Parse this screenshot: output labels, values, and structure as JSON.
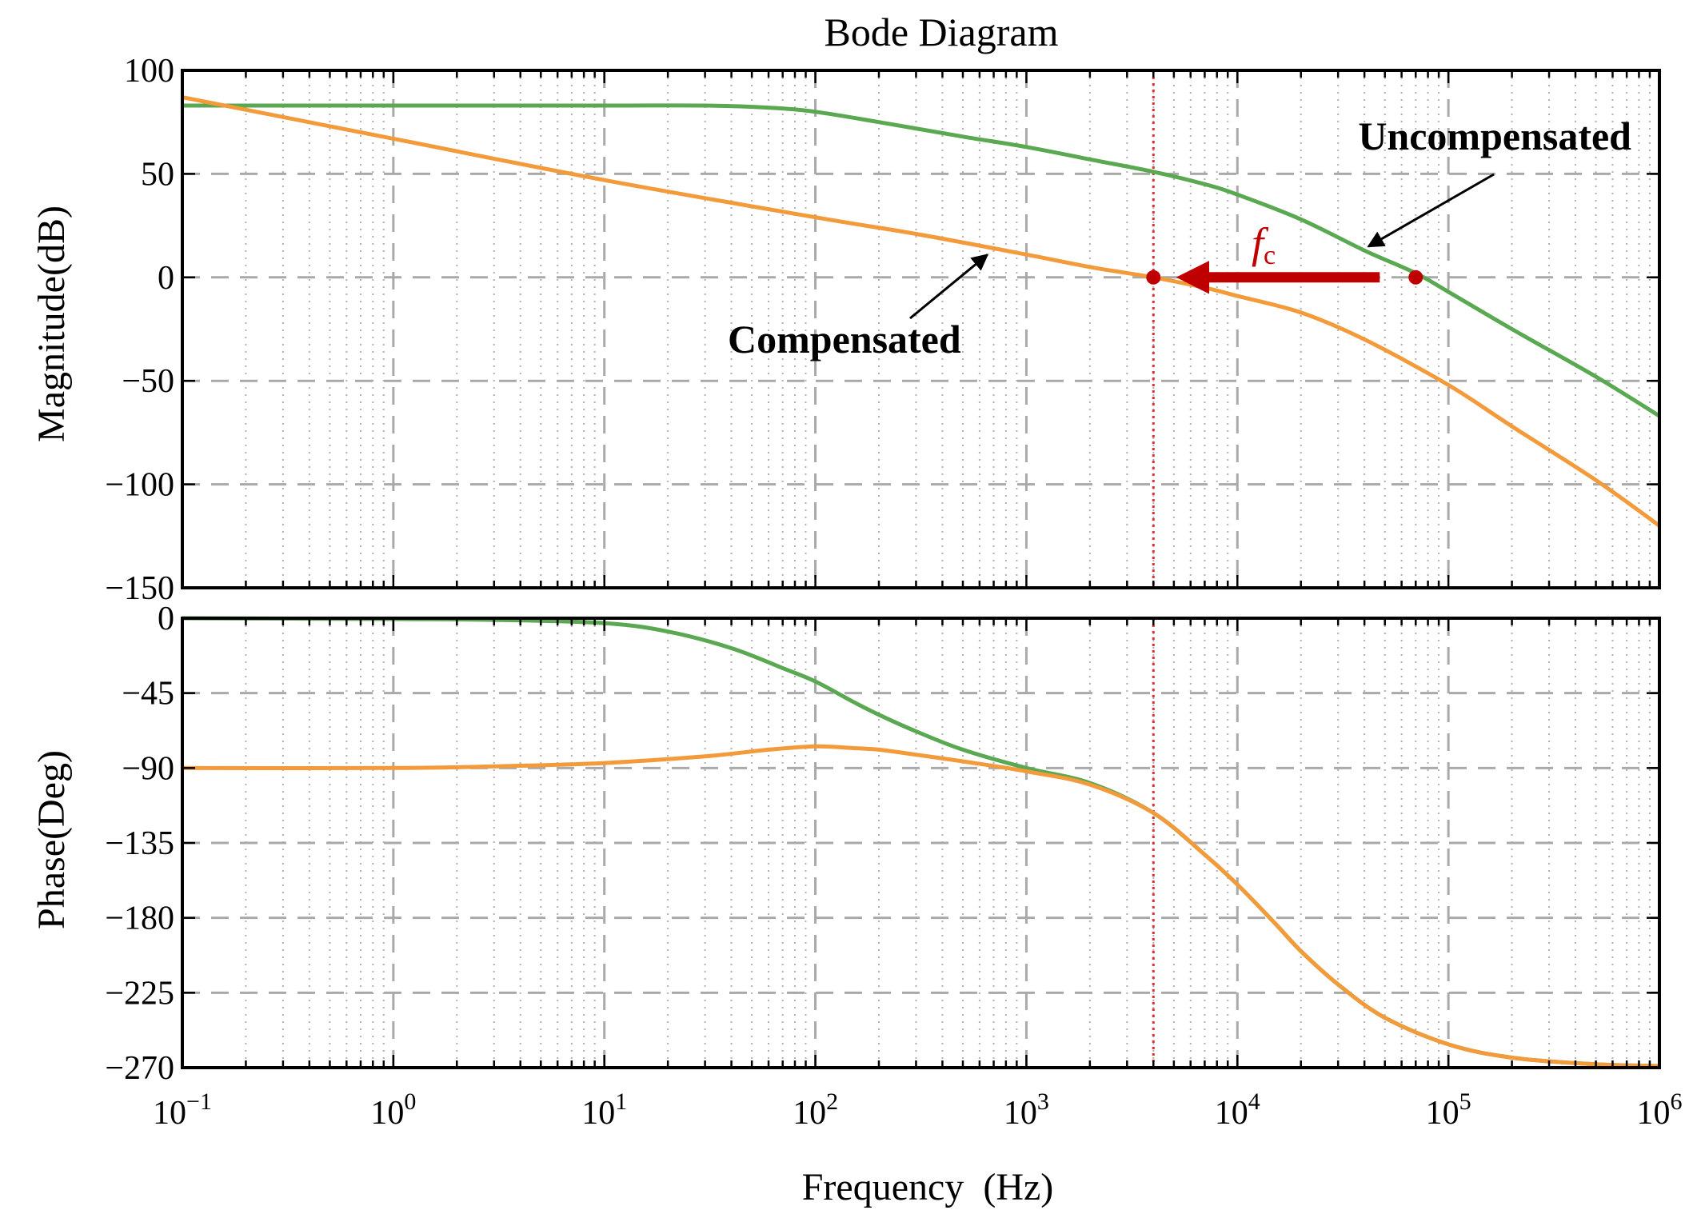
{
  "chart_data": [
    {
      "type": "line",
      "id": "magnitude",
      "title": "Bode Diagram",
      "xlabel": "",
      "ylabel": "Magnitude(dB)",
      "xscale": "log",
      "xlim": [
        0.1,
        1000000
      ],
      "ylim": [
        -150,
        100
      ],
      "yticks": [
        100,
        50,
        0,
        -50,
        -100,
        -150
      ],
      "ytick_labels": [
        "100",
        "50",
        "0",
        "−50",
        "−100",
        "−150"
      ],
      "grid": true,
      "series": [
        {
          "name": "Uncompensated",
          "color": "#5aa851",
          "x": [
            0.1,
            1,
            10,
            30,
            60,
            100,
            200,
            500,
            1000,
            2000,
            4000,
            7000,
            10000,
            20000,
            40000,
            70000,
            100000,
            200000,
            500000,
            1000000
          ],
          "y": [
            83,
            83,
            83,
            83,
            82,
            80,
            75,
            68,
            63,
            57,
            51,
            45,
            40,
            28,
            13,
            2,
            -7,
            -25,
            -48,
            -67
          ]
        },
        {
          "name": "Compensated",
          "color": "#f39a3b",
          "x": [
            0.1,
            1,
            10,
            100,
            300,
            1000,
            2000,
            4000,
            7000,
            10000,
            20000,
            40000,
            100000,
            200000,
            500000,
            1000000
          ],
          "y": [
            87,
            67,
            47,
            29,
            21,
            11,
            5,
            0,
            -5,
            -9,
            -17,
            -30,
            -52,
            -72,
            -98,
            -120
          ]
        }
      ],
      "annotations": [
        {
          "text": "Uncompensated",
          "points_to": [
            40000,
            13
          ]
        },
        {
          "text": "Compensated",
          "points_to": [
            700,
            14
          ]
        },
        {
          "text": "f",
          "subscript": "c",
          "meaning": "crossover frequency shift",
          "from": [
            70000,
            0
          ],
          "to": [
            4000,
            0
          ]
        }
      ],
      "markers": [
        {
          "x": 4000,
          "y": 0,
          "color": "#c00000"
        },
        {
          "x": 70000,
          "y": 0,
          "color": "#c00000"
        }
      ],
      "vline": {
        "x": 4000,
        "color": "#e03030"
      }
    },
    {
      "type": "line",
      "id": "phase",
      "title": "",
      "xlabel": "Frequency  (Hz)",
      "ylabel": "Phase(Deg)",
      "xscale": "log",
      "xlim": [
        0.1,
        1000000
      ],
      "ylim": [
        -270,
        0
      ],
      "yticks": [
        0,
        -45,
        -90,
        -135,
        -180,
        -225,
        -270
      ],
      "ytick_labels": [
        "0",
        "−45",
        "−90",
        "−135",
        "−180",
        "−225",
        "−270"
      ],
      "xticks": [
        0.1,
        1,
        10,
        100,
        1000,
        10000,
        100000,
        1000000
      ],
      "xtick_base": [
        "10",
        "10",
        "10",
        "10",
        "10",
        "10",
        "10",
        "10"
      ],
      "xtick_exp": [
        "−1",
        "0",
        "1",
        "2",
        "3",
        "4",
        "5",
        "6"
      ],
      "grid": true,
      "series": [
        {
          "name": "Uncompensated",
          "color": "#5aa851",
          "x": [
            0.1,
            1,
            3,
            10,
            20,
            40,
            70,
            100,
            150,
            200,
            300,
            500,
            1000,
            2000,
            4000,
            7000,
            10000,
            15000,
            20000,
            30000,
            50000,
            100000,
            200000,
            500000,
            1000000
          ],
          "y": [
            0,
            -0.5,
            -1,
            -3,
            -8,
            -18,
            -30,
            -38,
            -50,
            -58,
            -68,
            -79,
            -90,
            -99,
            -117,
            -142,
            -160,
            -183,
            -200,
            -220,
            -240,
            -256,
            -264,
            -268,
            -269
          ]
        },
        {
          "name": "Compensated",
          "color": "#f39a3b",
          "x": [
            0.1,
            1,
            3,
            10,
            30,
            60,
            100,
            150,
            200,
            300,
            500,
            1000,
            2000,
            4000,
            7000,
            10000,
            15000,
            20000,
            30000,
            50000,
            100000,
            200000,
            500000,
            1000000
          ],
          "y": [
            -90,
            -90,
            -89,
            -87,
            -83,
            -79,
            -77,
            -78,
            -79,
            -82,
            -86,
            -92,
            -100,
            -117,
            -142,
            -160,
            -183,
            -200,
            -220,
            -240,
            -256,
            -264,
            -268,
            -269
          ]
        }
      ],
      "vline": {
        "x": 4000,
        "color": "#e03030"
      }
    }
  ]
}
